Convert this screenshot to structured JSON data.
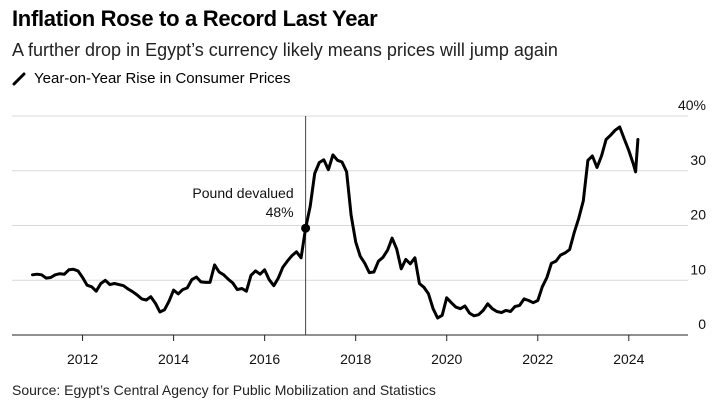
{
  "header": {
    "title": "Inflation Rose to a Record Last Year",
    "subtitle": "A further drop in Egypt’s currency likely means prices will jump again"
  },
  "legend": {
    "label": "Year-on-Year Rise in Consumer Prices"
  },
  "footer": {
    "source": "Source: Egypt’s Central Agency for Public Mobilization and Statistics"
  },
  "annotation": {
    "line1": "Pound devalued",
    "line2": "48%",
    "x": 2016.9,
    "y": 19.5
  },
  "chart_data": {
    "type": "line",
    "title": "Inflation Rose to a Record Last Year",
    "subtitle": "A further drop in Egypt’s currency likely means prices will jump again",
    "xlabel": "",
    "ylabel": "",
    "xlim": [
      2010.45,
      2025.3
    ],
    "ylim": [
      0,
      40
    ],
    "x_ticks": [
      2012,
      2014,
      2016,
      2018,
      2020,
      2022,
      2024
    ],
    "y_ticks": [
      0,
      10,
      20,
      30,
      40
    ],
    "y_tick_labels": [
      "0",
      "10",
      "20",
      "30",
      "40%"
    ],
    "grid": true,
    "color": "#000000",
    "series": [
      {
        "name": "Year-on-Year Rise in Consumer Prices",
        "points": [
          [
            2010.9,
            11.0
          ],
          [
            2011.0,
            11.1
          ],
          [
            2011.1,
            11.0
          ],
          [
            2011.2,
            10.4
          ],
          [
            2011.3,
            10.5
          ],
          [
            2011.4,
            11.0
          ],
          [
            2011.5,
            11.2
          ],
          [
            2011.6,
            11.1
          ],
          [
            2011.7,
            11.9
          ],
          [
            2011.8,
            12.0
          ],
          [
            2011.9,
            11.7
          ],
          [
            2012.0,
            10.5
          ],
          [
            2012.1,
            9.1
          ],
          [
            2012.2,
            8.8
          ],
          [
            2012.3,
            8.0
          ],
          [
            2012.4,
            9.4
          ],
          [
            2012.5,
            10.0
          ],
          [
            2012.6,
            9.2
          ],
          [
            2012.7,
            9.4
          ],
          [
            2012.8,
            9.2
          ],
          [
            2012.9,
            9.0
          ],
          [
            2013.0,
            8.4
          ],
          [
            2013.1,
            7.9
          ],
          [
            2013.2,
            7.3
          ],
          [
            2013.3,
            6.6
          ],
          [
            2013.4,
            6.4
          ],
          [
            2013.5,
            7.0
          ],
          [
            2013.6,
            5.8
          ],
          [
            2013.7,
            4.2
          ],
          [
            2013.8,
            4.6
          ],
          [
            2013.9,
            6.2
          ],
          [
            2014.0,
            8.2
          ],
          [
            2014.1,
            7.5
          ],
          [
            2014.2,
            8.3
          ],
          [
            2014.3,
            8.6
          ],
          [
            2014.4,
            10.1
          ],
          [
            2014.5,
            10.6
          ],
          [
            2014.6,
            9.7
          ],
          [
            2014.7,
            9.6
          ],
          [
            2014.8,
            9.6
          ],
          [
            2014.9,
            12.8
          ],
          [
            2015.0,
            11.5
          ],
          [
            2015.1,
            11.0
          ],
          [
            2015.2,
            10.2
          ],
          [
            2015.3,
            9.5
          ],
          [
            2015.4,
            8.3
          ],
          [
            2015.5,
            8.5
          ],
          [
            2015.6,
            8.0
          ],
          [
            2015.7,
            10.9
          ],
          [
            2015.8,
            11.7
          ],
          [
            2015.9,
            11.1
          ],
          [
            2016.0,
            11.9
          ],
          [
            2016.1,
            10.1
          ],
          [
            2016.2,
            9.0
          ],
          [
            2016.3,
            10.4
          ],
          [
            2016.4,
            12.4
          ],
          [
            2016.5,
            13.5
          ],
          [
            2016.6,
            14.5
          ],
          [
            2016.7,
            15.2
          ],
          [
            2016.8,
            14.1
          ],
          [
            2016.9,
            19.5
          ],
          [
            2017.0,
            23.5
          ],
          [
            2017.1,
            29.5
          ],
          [
            2017.2,
            31.5
          ],
          [
            2017.3,
            32.0
          ],
          [
            2017.4,
            30.2
          ],
          [
            2017.5,
            32.9
          ],
          [
            2017.6,
            31.9
          ],
          [
            2017.7,
            31.6
          ],
          [
            2017.8,
            29.8
          ],
          [
            2017.9,
            21.9
          ],
          [
            2018.0,
            17.0
          ],
          [
            2018.1,
            14.4
          ],
          [
            2018.2,
            13.1
          ],
          [
            2018.3,
            11.4
          ],
          [
            2018.4,
            11.5
          ],
          [
            2018.5,
            13.5
          ],
          [
            2018.6,
            14.2
          ],
          [
            2018.7,
            15.5
          ],
          [
            2018.8,
            17.7
          ],
          [
            2018.9,
            15.7
          ],
          [
            2019.0,
            12.1
          ],
          [
            2019.1,
            13.8
          ],
          [
            2019.2,
            13.0
          ],
          [
            2019.3,
            14.1
          ],
          [
            2019.4,
            9.4
          ],
          [
            2019.5,
            8.7
          ],
          [
            2019.6,
            7.5
          ],
          [
            2019.7,
            4.8
          ],
          [
            2019.8,
            3.1
          ],
          [
            2019.9,
            3.6
          ],
          [
            2020.0,
            6.8
          ],
          [
            2020.1,
            5.9
          ],
          [
            2020.2,
            5.1
          ],
          [
            2020.3,
            4.8
          ],
          [
            2020.4,
            5.3
          ],
          [
            2020.5,
            4.0
          ],
          [
            2020.6,
            3.5
          ],
          [
            2020.7,
            3.7
          ],
          [
            2020.8,
            4.5
          ],
          [
            2020.9,
            5.7
          ],
          [
            2021.0,
            4.8
          ],
          [
            2021.1,
            4.3
          ],
          [
            2021.2,
            4.1
          ],
          [
            2021.3,
            4.5
          ],
          [
            2021.4,
            4.3
          ],
          [
            2021.5,
            5.2
          ],
          [
            2021.6,
            5.4
          ],
          [
            2021.7,
            6.6
          ],
          [
            2021.8,
            6.3
          ],
          [
            2021.9,
            5.9
          ],
          [
            2022.0,
            6.3
          ],
          [
            2022.1,
            8.8
          ],
          [
            2022.2,
            10.5
          ],
          [
            2022.3,
            13.1
          ],
          [
            2022.4,
            13.5
          ],
          [
            2022.5,
            14.6
          ],
          [
            2022.6,
            15.0
          ],
          [
            2022.7,
            15.6
          ],
          [
            2022.8,
            18.7
          ],
          [
            2022.9,
            21.3
          ],
          [
            2023.0,
            24.5
          ],
          [
            2023.1,
            31.9
          ],
          [
            2023.2,
            32.7
          ],
          [
            2023.3,
            30.6
          ],
          [
            2023.4,
            32.7
          ],
          [
            2023.5,
            35.7
          ],
          [
            2023.6,
            36.5
          ],
          [
            2023.7,
            37.4
          ],
          [
            2023.8,
            38.0
          ],
          [
            2023.9,
            35.8
          ],
          [
            2024.0,
            33.7
          ],
          [
            2024.1,
            31.2
          ],
          [
            2024.15,
            29.8
          ],
          [
            2024.2,
            35.7
          ]
        ]
      }
    ]
  }
}
